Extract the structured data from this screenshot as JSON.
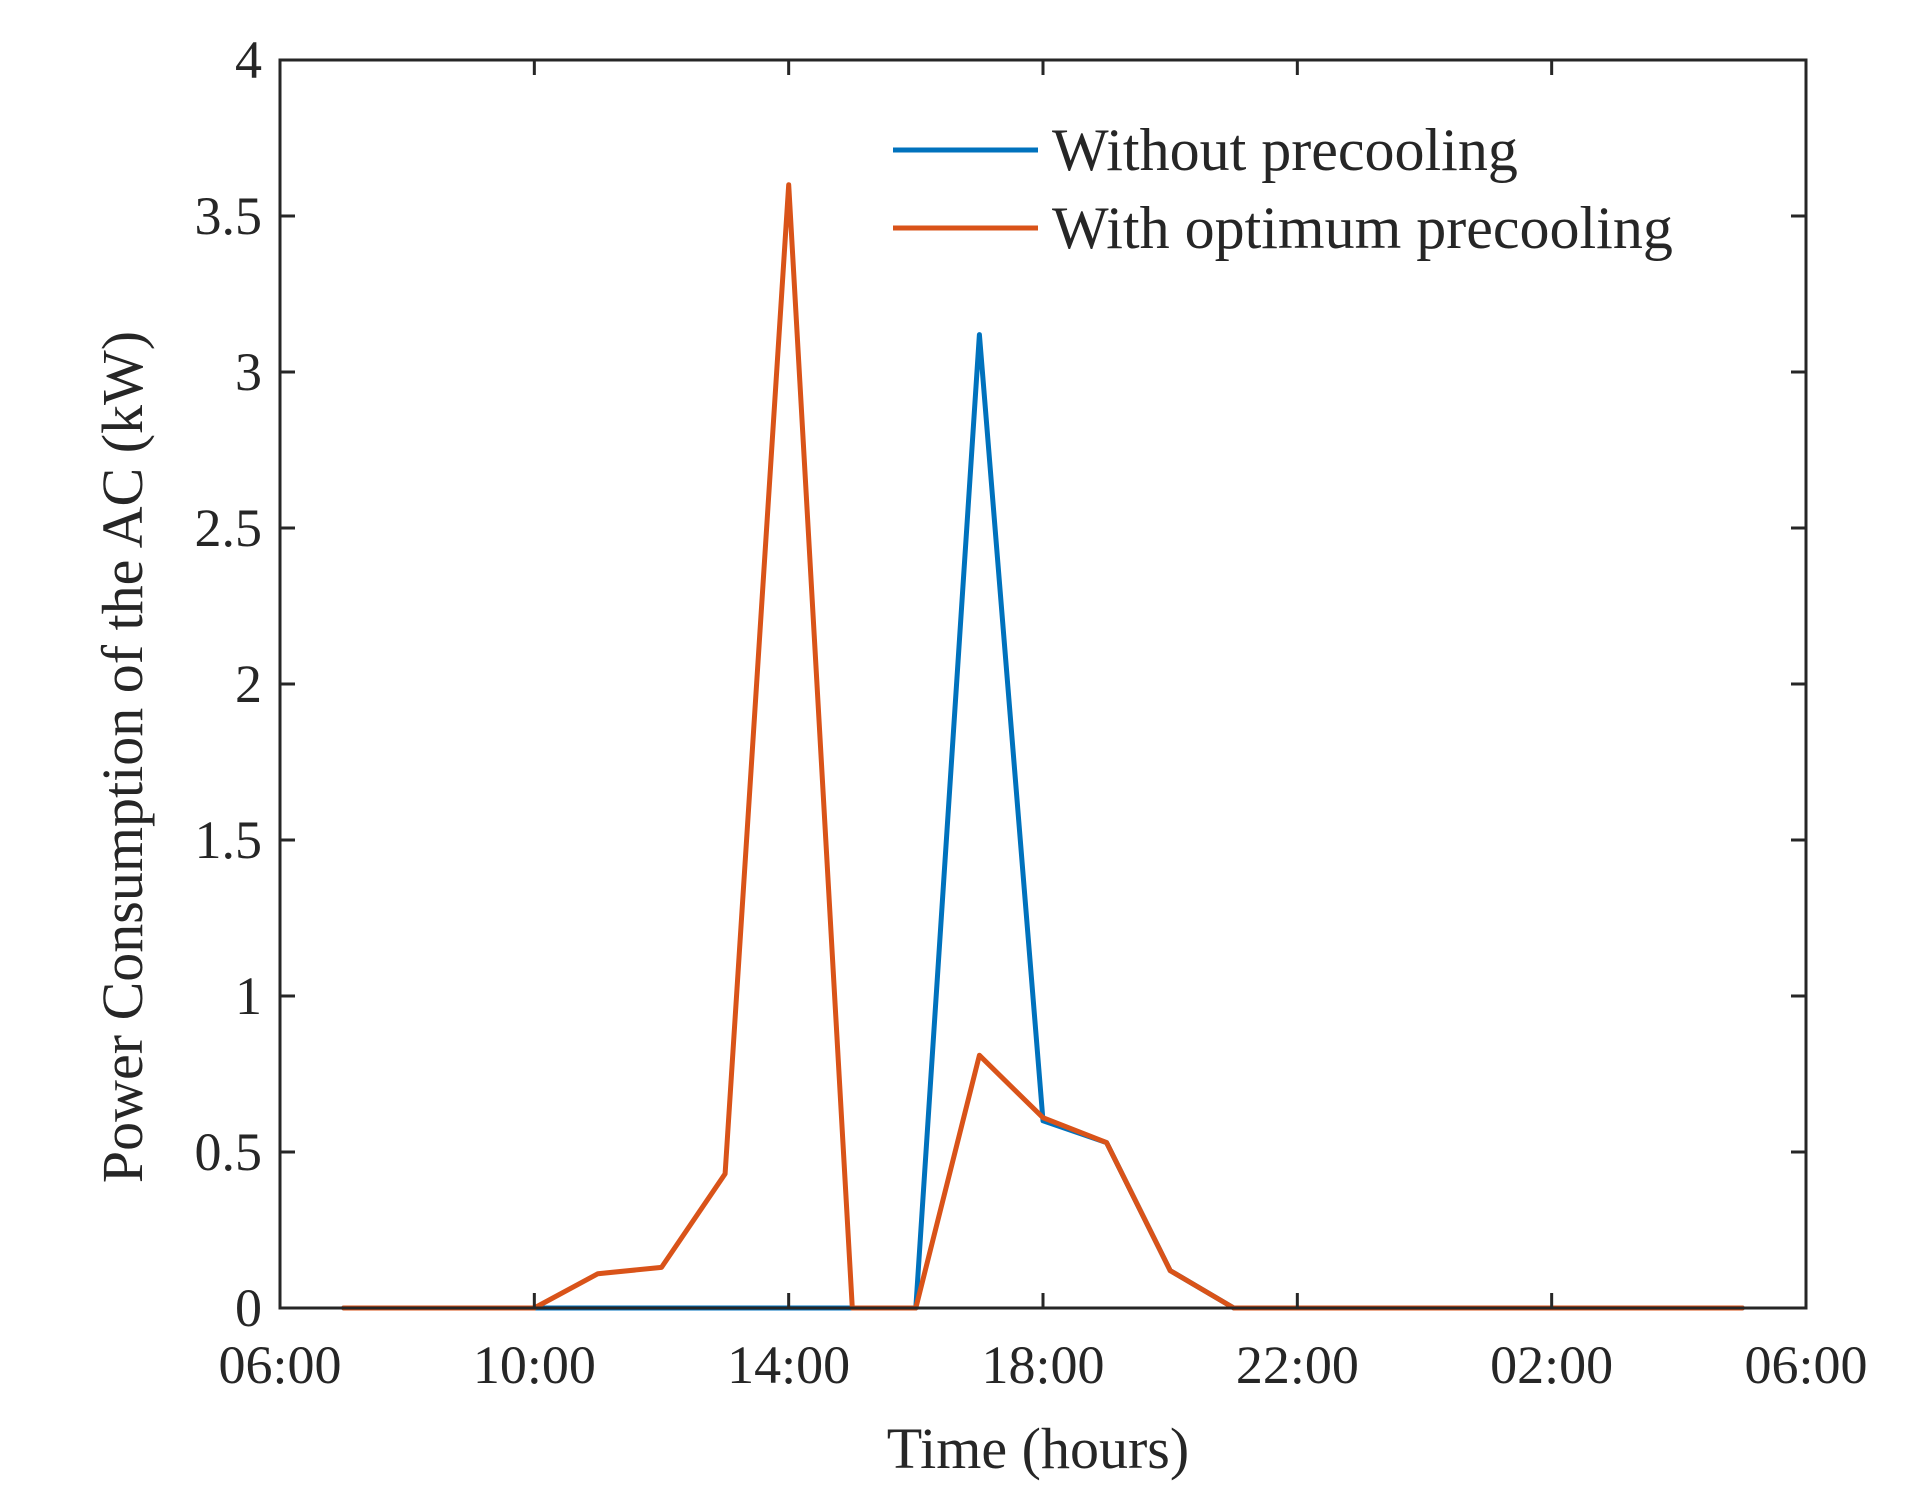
{
  "chart_data": {
    "type": "line",
    "title": "",
    "xlabel": "Time (hours)",
    "ylabel": "Power Consumption of the AC (kW)",
    "xlim": [
      0,
      24
    ],
    "ylim": [
      0,
      4
    ],
    "xticks": [
      0,
      4,
      8,
      12,
      16,
      20,
      24
    ],
    "xtick_labels": [
      "06:00",
      "10:00",
      "14:00",
      "18:00",
      "22:00",
      "02:00",
      "06:00"
    ],
    "yticks": [
      0,
      0.5,
      1,
      1.5,
      2,
      2.5,
      3,
      3.5,
      4
    ],
    "ytick_labels": [
      "0",
      "0.5",
      "1",
      "1.5",
      "2",
      "2.5",
      "3",
      "3.5",
      "4"
    ],
    "legend_position": "top-right",
    "x": [
      1,
      2,
      3,
      4,
      5,
      6,
      7,
      8,
      9,
      10,
      11,
      12,
      13,
      14,
      15,
      16,
      17,
      18,
      19,
      20,
      21,
      22,
      23
    ],
    "series": [
      {
        "name": "Without precooling",
        "color": "#0072BD",
        "values": [
          0,
          0,
          0,
          0,
          0,
          0,
          0,
          0,
          0,
          0,
          3.12,
          0.6,
          0.53,
          0.12,
          0,
          0,
          0,
          0,
          0,
          0,
          0,
          0,
          0
        ]
      },
      {
        "name": "With optimum precooling",
        "color": "#D95319",
        "values": [
          0,
          0,
          0,
          0,
          0.11,
          0.13,
          0.43,
          3.6,
          0,
          0,
          0.81,
          0.61,
          0.53,
          0.12,
          0,
          0,
          0,
          0,
          0,
          0,
          0,
          0,
          0
        ]
      }
    ]
  }
}
